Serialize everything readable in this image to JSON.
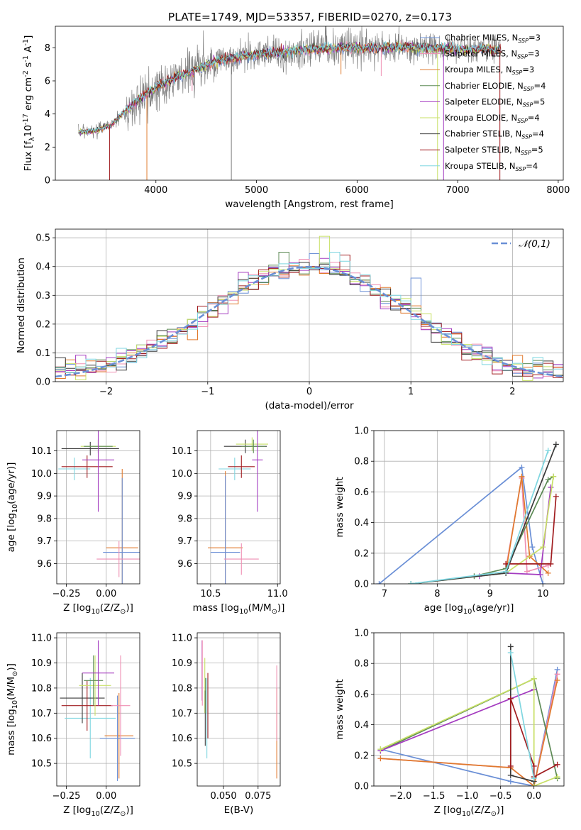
{
  "figure_title": "PLATE=1749, MJD=53357, FIBERID=0270, z=0.173",
  "colors": {
    "Chabrier MILES": "#6a8fd6",
    "Salpeter MILES": "#ef8fb3",
    "Kroupa MILES": "#e07a2e",
    "Chabrier ELODIE": "#5c8a55",
    "Salpeter ELODIE": "#a43cc0",
    "Kroupa ELODIE": "#c8e066",
    "Chabrier STELIB": "#3a3a3a",
    "Salpeter STELIB": "#a11d20",
    "Kroupa STELIB": "#7fd6e0",
    "spectrum": "#808080"
  },
  "chart_data": [
    {
      "id": "spectrum",
      "type": "line",
      "xlabel": "wavelength [Angstrom, rest frame]",
      "ylabel": "Flux [f$_\\lambda$10$^{-17}$ erg cm$^{-2}$ s$^{-1}$ A$^{-1}$]",
      "xlim": [
        3000,
        8050
      ],
      "ylim": [
        0,
        9.3
      ],
      "xticks": [
        4000,
        5000,
        6000,
        7000,
        8000
      ],
      "yticks": [
        0,
        2,
        4,
        6,
        8
      ],
      "legend_position": "top-right",
      "legend": [
        {
          "name": "Chabrier MILES",
          "label": "Chabrier MILES, N",
          "sub": "SSP",
          "n": "=3"
        },
        {
          "name": "Salpeter MILES",
          "label": "Salpeter MILES, N",
          "sub": "SSP",
          "n": "=3"
        },
        {
          "name": "Kroupa MILES",
          "label": "Kroupa MILES, N",
          "sub": "SSP",
          "n": "=3"
        },
        {
          "name": "Chabrier ELODIE",
          "label": "Chabrier ELODIE, N",
          "sub": "SSP",
          "n": "=4"
        },
        {
          "name": "Salpeter ELODIE",
          "label": "Salpeter ELODIE, N",
          "sub": "SSP",
          "n": "=5"
        },
        {
          "name": "Kroupa ELODIE",
          "label": "Kroupa ELODIE, N",
          "sub": "SSP",
          "n": "=4"
        },
        {
          "name": "Chabrier STELIB",
          "label": "Chabrier STELIB, N",
          "sub": "SSP",
          "n": "=4"
        },
        {
          "name": "Salpeter STELIB",
          "label": "Salpeter STELIB, N",
          "sub": "SSP",
          "n": "=5"
        },
        {
          "name": "Kroupa STELIB",
          "label": "Kroupa STELIB, N",
          "sub": "SSP",
          "n": "=4"
        }
      ],
      "model_curve": {
        "x": [
          3250,
          3400,
          3550,
          3700,
          3850,
          3950,
          4050,
          4200,
          4400,
          4600,
          4800,
          5000,
          5200,
          5500,
          5800,
          6100,
          6400,
          6700,
          7000,
          7200,
          7430
        ],
        "y": [
          2.9,
          3.0,
          3.3,
          4.2,
          5.0,
          5.4,
          5.8,
          6.2,
          6.7,
          7.2,
          7.4,
          7.6,
          7.7,
          7.9,
          8.0,
          8.0,
          8.0,
          8.0,
          7.9,
          7.9,
          7.9
        ]
      },
      "spectrum_range": [
        3230,
        7430
      ],
      "dips": [
        {
          "x": 3540,
          "to": 0,
          "series": "Salpeter STELIB"
        },
        {
          "x": 3910,
          "to": 0,
          "series": "Kroupa MILES"
        },
        {
          "x": 4750,
          "to": 0,
          "series": "spectrum"
        },
        {
          "x": 6800,
          "to": 0,
          "series": "Kroupa ELODIE"
        },
        {
          "x": 6860,
          "to": 0,
          "series": "Salpeter ELODIE"
        },
        {
          "x": 7420,
          "to": 0,
          "series": "Salpeter STELIB"
        },
        {
          "x": 6240,
          "to": 6.3,
          "series": "Salpeter MILES"
        },
        {
          "x": 5840,
          "to": 6.4,
          "series": "Kroupa MILES"
        },
        {
          "x": 4360,
          "to": 5.4,
          "series": "Salpeter MILES"
        }
      ]
    },
    {
      "id": "residuals",
      "type": "histogram",
      "xlabel": "(data-model)/error",
      "ylabel": "Normed distribution",
      "xlim": [
        -2.5,
        2.5
      ],
      "ylim": [
        0,
        0.53
      ],
      "xticks": [
        -2,
        -1,
        0,
        1,
        2
      ],
      "yticks": [
        0.0,
        0.1,
        0.2,
        0.3,
        0.4,
        0.5
      ],
      "grid": true,
      "legend_position": "top-right",
      "reference_curve": {
        "label": "$\\mathcal{N}(0,1)$",
        "mean": 0,
        "sigma": 1
      },
      "bin_width": 0.1,
      "bin_start": -2.5,
      "highlight_bins": [
        {
          "series": "Chabrier ELODIE",
          "bin": 22,
          "value": 0.45
        },
        {
          "series": "Kroupa ELODIE",
          "bin": 26,
          "value": 0.505
        },
        {
          "series": "Salpeter STELIB",
          "bin": 28,
          "value": 0.44
        },
        {
          "series": "Kroupa STELIB",
          "bin": 27,
          "value": 0.45
        },
        {
          "series": "Chabrier MILES",
          "bin": 35,
          "value": 0.36
        }
      ]
    },
    {
      "id": "age_vs_Z",
      "type": "errorbar",
      "xlabel": "Z [log$_{10}$(Z/Z$_\\odot$)]",
      "ylabel": "age  [log$_{10}$(age/yr)]",
      "xlim": [
        -0.31,
        0.21
      ],
      "ylim": [
        9.51,
        10.19
      ],
      "xticks": [
        -0.25,
        0.0
      ],
      "yticks": [
        9.6,
        9.7,
        9.8,
        9.9,
        10.0,
        10.1
      ],
      "grid": true,
      "points": [
        {
          "series": "Kroupa STELIB",
          "x": -0.2,
          "y": 10.02,
          "xerr": 0.1,
          "yerr": 0.05
        },
        {
          "series": "Chabrier STELIB",
          "x": -0.1,
          "y": 10.11,
          "xerr": 0.18,
          "yerr": 0.03
        },
        {
          "series": "Salpeter STELIB",
          "x": -0.12,
          "y": 10.03,
          "xerr": 0.16,
          "yerr": 0.05
        },
        {
          "series": "Kroupa ELODIE",
          "x": -0.05,
          "y": 10.12,
          "xerr": 0.11,
          "yerr": 0.03
        },
        {
          "series": "Chabrier ELODIE",
          "x": -0.05,
          "y": 10.12,
          "xerr": 0.09,
          "yerr": 0.03
        },
        {
          "series": "Salpeter ELODIE",
          "x": -0.05,
          "y": 10.06,
          "xerr": 0.1,
          "yerr": 0.23
        },
        {
          "series": "Kroupa MILES",
          "x": 0.1,
          "y": 9.67,
          "xerr": 0.1,
          "yerr": 0.35
        },
        {
          "series": "Chabrier MILES",
          "x": 0.1,
          "y": 9.65,
          "xerr": 0.12,
          "yerr": 0.33
        },
        {
          "series": "Salpeter MILES",
          "x": 0.08,
          "y": 9.62,
          "xerr": 0.14,
          "yerr": 0.08
        }
      ]
    },
    {
      "id": "age_vs_mass",
      "type": "errorbar",
      "xlabel": "mass [log$_{10}$(M/M$_\\odot$)]",
      "ylabel": "",
      "xlim": [
        10.4,
        11.02
      ],
      "ylim": [
        9.51,
        10.19
      ],
      "xticks": [
        10.5,
        11.0
      ],
      "yticks": [
        9.6,
        9.7,
        9.8,
        9.9,
        10.0,
        10.1
      ],
      "grid": true,
      "points": [
        {
          "series": "Kroupa STELIB",
          "x": 10.68,
          "y": 10.02,
          "xerr": 0.12,
          "yerr": 0.05
        },
        {
          "series": "Chabrier STELIB",
          "x": 10.76,
          "y": 10.12,
          "xerr": 0.16,
          "yerr": 0.03
        },
        {
          "series": "Salpeter STELIB",
          "x": 10.73,
          "y": 10.03,
          "xerr": 0.1,
          "yerr": 0.05
        },
        {
          "series": "Kroupa ELODIE",
          "x": 10.81,
          "y": 10.13,
          "xerr": 0.12,
          "yerr": 0.03
        },
        {
          "series": "Chabrier ELODIE",
          "x": 10.82,
          "y": 10.12,
          "xerr": 0.09,
          "yerr": 0.03
        },
        {
          "series": "Salpeter ELODIE",
          "x": 10.85,
          "y": 10.06,
          "xerr": 0.04,
          "yerr": 0.23
        },
        {
          "series": "Kroupa MILES",
          "x": 10.61,
          "y": 9.67,
          "xerr": 0.13,
          "yerr": 0.34
        },
        {
          "series": "Chabrier MILES",
          "x": 10.61,
          "y": 9.65,
          "xerr": 0.11,
          "yerr": 0.34
        },
        {
          "series": "Salpeter MILES",
          "x": 10.73,
          "y": 9.62,
          "xerr": 0.13,
          "yerr": 0.07
        }
      ]
    },
    {
      "id": "weight_vs_age",
      "type": "line",
      "xlabel": "age  [log$_{10}$(age/yr)]",
      "ylabel": "mass weight",
      "xlim": [
        6.8,
        10.4
      ],
      "ylim": [
        0,
        1.0
      ],
      "xticks": [
        7,
        8,
        9,
        10
      ],
      "yticks": [
        0.0,
        0.2,
        0.4,
        0.6,
        0.8,
        1.0
      ],
      "grid": true,
      "series": [
        {
          "name": "Chabrier MILES",
          "x": [
            6.9,
            9.6,
            9.8,
            10.0
          ],
          "y": [
            0.0,
            0.76,
            0.24,
            0.0
          ]
        },
        {
          "name": "Salpeter MILES",
          "x": [
            9.3,
            9.6,
            9.7,
            10.1
          ],
          "y": [
            0.1,
            0.69,
            0.08,
            0.12
          ]
        },
        {
          "name": "Kroupa MILES",
          "x": [
            9.3,
            9.6,
            9.75,
            10.1
          ],
          "y": [
            0.08,
            0.7,
            0.18,
            0.07
          ]
        },
        {
          "name": "Chabrier ELODIE",
          "x": [
            8.7,
            9.3,
            10.1,
            10.2
          ],
          "y": [
            0.05,
            0.1,
            0.68,
            0.7
          ]
        },
        {
          "name": "Salpeter ELODIE",
          "x": [
            8.8,
            9.3,
            9.95,
            10.15
          ],
          "y": [
            0.05,
            0.07,
            0.06,
            0.63
          ]
        },
        {
          "name": "Kroupa ELODIE",
          "x": [
            7.5,
            9.3,
            10.0,
            10.2
          ],
          "y": [
            0.0,
            0.07,
            0.24,
            0.7
          ]
        },
        {
          "name": "Chabrier STELIB",
          "x": [
            7.5,
            9.3,
            10.25
          ],
          "y": [
            0.0,
            0.07,
            0.91
          ]
        },
        {
          "name": "Salpeter STELIB",
          "x": [
            9.3,
            10.15,
            10.25
          ],
          "y": [
            0.13,
            0.13,
            0.57
          ]
        },
        {
          "name": "Kroupa STELIB",
          "x": [
            7.5,
            9.3,
            10.1
          ],
          "y": [
            0.0,
            0.08,
            0.87
          ]
        }
      ]
    },
    {
      "id": "mass_vs_Z",
      "type": "errorbar",
      "xlabel": "Z [log$_{10}$(Z/Z$_\\odot$)]",
      "ylabel": "mass [log$_{10}$(M/M$_\\odot$)]",
      "xlim": [
        -0.31,
        0.21
      ],
      "ylim": [
        10.41,
        11.02
      ],
      "xticks": [
        -0.25,
        0.0
      ],
      "yticks": [
        10.5,
        10.6,
        10.7,
        10.8,
        10.9,
        11.0
      ],
      "grid": true,
      "points": [
        {
          "series": "Kroupa STELIB",
          "x": -0.1,
          "y": 10.68,
          "xerr": 0.16,
          "yerr": 0.16
        },
        {
          "series": "Chabrier STELIB",
          "x": -0.15,
          "y": 10.76,
          "xerr": 0.14,
          "yerr": 0.1
        },
        {
          "series": "Salpeter STELIB",
          "x": -0.12,
          "y": 10.73,
          "xerr": 0.16,
          "yerr": 0.1
        },
        {
          "series": "Kroupa ELODIE",
          "x": -0.07,
          "y": 10.81,
          "xerr": 0.1,
          "yerr": 0.12
        },
        {
          "series": "Chabrier ELODIE",
          "x": -0.08,
          "y": 10.83,
          "xerr": 0.06,
          "yerr": 0.1
        },
        {
          "series": "Salpeter ELODIE",
          "x": -0.05,
          "y": 10.86,
          "xerr": 0.1,
          "yerr": 0.13
        },
        {
          "series": "Kroupa MILES",
          "x": 0.08,
          "y": 10.61,
          "xerr": 0.09,
          "yerr": 0.17
        },
        {
          "series": "Chabrier MILES",
          "x": 0.07,
          "y": 10.6,
          "xerr": 0.11,
          "yerr": 0.17
        },
        {
          "series": "Salpeter MILES",
          "x": 0.09,
          "y": 10.73,
          "xerr": 0.06,
          "yerr": 0.2
        }
      ]
    },
    {
      "id": "mass_vs_ebv",
      "type": "errorbar",
      "xlabel": "E(B-V)",
      "ylabel": "",
      "xlim": [
        0.031,
        0.091
      ],
      "ylim": [
        10.41,
        11.02
      ],
      "xticks": [
        0.05,
        0.075
      ],
      "yticks": [
        10.5,
        10.6,
        10.7,
        10.8,
        10.9,
        11.0
      ],
      "grid": true,
      "points": [
        {
          "series": "Salpeter ELODIE",
          "x": 0.0345,
          "y": 10.87,
          "yerr": 0.12
        },
        {
          "series": "Salpeter MILES",
          "x": 0.0347,
          "y": 10.86,
          "yerr": 0.13
        },
        {
          "series": "Kroupa ELODIE",
          "x": 0.0365,
          "y": 10.81,
          "yerr": 0.11
        },
        {
          "series": "Chabrier STELIB",
          "x": 0.0368,
          "y": 10.68,
          "yerr": 0.11
        },
        {
          "series": "Chabrier ELODIE",
          "x": 0.037,
          "y": 10.77,
          "yerr": 0.07
        },
        {
          "series": "Kroupa STELIB",
          "x": 0.038,
          "y": 10.68,
          "yerr": 0.16
        },
        {
          "series": "Salpeter STELIB",
          "x": 0.0387,
          "y": 10.73,
          "yerr": 0.13
        },
        {
          "series": "Kroupa MILES",
          "x": 0.0885,
          "y": 10.62,
          "yerr": 0.18
        },
        {
          "series": "Salpeter MILES",
          "x": 0.0885,
          "y": 10.74,
          "yerr": 0.15
        }
      ]
    },
    {
      "id": "weight_vs_Z",
      "type": "line",
      "xlabel": "Z [log$_{10}$(Z/Z$_\\odot$)]",
      "ylabel": "mass weight",
      "xlim": [
        -2.4,
        0.45
      ],
      "ylim": [
        0,
        1.0
      ],
      "xticks": [
        -2.0,
        -1.5,
        -1.0,
        -0.5,
        0.0
      ],
      "yticks": [
        0.0,
        0.2,
        0.4,
        0.6,
        0.8,
        1.0
      ],
      "grid": true,
      "series": [
        {
          "name": "Chabrier MILES",
          "x": [
            -2.3,
            -0.35,
            0.0,
            0.35
          ],
          "y": [
            0.24,
            0.03,
            0.0,
            0.76
          ]
        },
        {
          "name": "Salpeter MILES",
          "x": [
            -2.3,
            -0.35,
            0.0,
            0.35
          ],
          "y": [
            0.18,
            0.12,
            0.0,
            0.73
          ]
        },
        {
          "name": "Kroupa MILES",
          "x": [
            -2.3,
            -0.35,
            0.0,
            0.35
          ],
          "y": [
            0.18,
            0.12,
            0.0,
            0.69
          ]
        },
        {
          "name": "Chabrier ELODIE",
          "x": [
            -2.3,
            0.0,
            0.35
          ],
          "y": [
            0.23,
            0.7,
            0.05
          ]
        },
        {
          "name": "Salpeter ELODIE",
          "x": [
            -2.3,
            -0.35,
            0.0
          ],
          "y": [
            0.23,
            0.57,
            0.63
          ]
        },
        {
          "name": "Kroupa ELODIE",
          "x": [
            -2.3,
            0.0,
            0.0,
            0.35
          ],
          "y": [
            0.24,
            0.7,
            0.0,
            0.06
          ]
        },
        {
          "name": "Chabrier STELIB",
          "x": [
            -0.35,
            -0.35,
            0.0
          ],
          "y": [
            0.91,
            0.07,
            0.03
          ]
        },
        {
          "name": "Salpeter STELIB",
          "x": [
            -0.35,
            -0.35,
            0.0,
            0.0,
            0.35
          ],
          "y": [
            0.13,
            0.57,
            0.13,
            0.06,
            0.14
          ]
        },
        {
          "name": "Kroupa STELIB",
          "x": [
            -0.35,
            0.0
          ],
          "y": [
            0.87,
            0.05
          ]
        }
      ]
    }
  ]
}
